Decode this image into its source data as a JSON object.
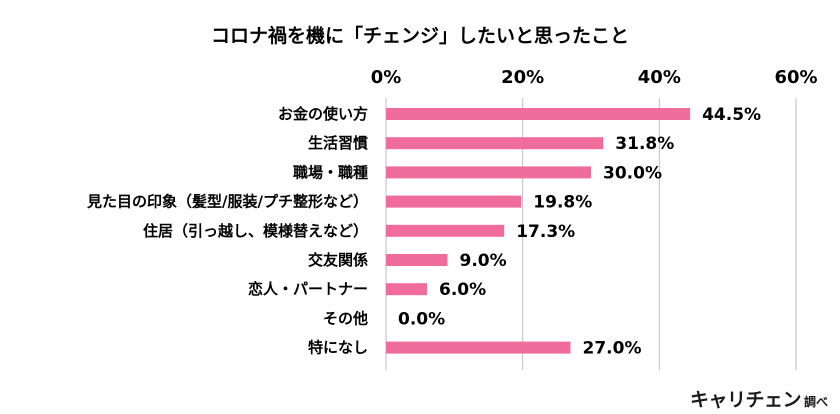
{
  "colors": {
    "bar": "#f06c9b",
    "grid": "#bdbdbd",
    "text": "#000000",
    "brand_accent": "#e95a8c"
  },
  "credit": {
    "brand": "キャリチェン",
    "suffix": "調べ"
  },
  "chart_data": {
    "type": "bar",
    "orientation": "horizontal",
    "title": "コロナ禍を機に「チェンジ」したいと思ったこと",
    "categories": [
      "お金の使い方",
      "生活習慣",
      "職場・職種",
      "見た目の印象（髪型/服装/プチ整形など）",
      "住居（引っ越し、模様替えなど）",
      "交友関係",
      "恋人・パートナー",
      "その他",
      "特になし"
    ],
    "values": [
      44.5,
      31.8,
      30.0,
      19.8,
      17.3,
      9.0,
      6.0,
      0.0,
      27.0
    ],
    "value_labels": [
      "44.5%",
      "31.8%",
      "30.0%",
      "19.8%",
      "17.3%",
      "9.0%",
      "6.0%",
      "0.0%",
      "27.0%"
    ],
    "xlim": [
      0,
      60
    ],
    "xticks": [
      0,
      20,
      40,
      60
    ],
    "xtick_labels": [
      "0%",
      "20%",
      "40%",
      "60%"
    ],
    "xaxis_position": "top",
    "grid": true,
    "legend": "none"
  }
}
